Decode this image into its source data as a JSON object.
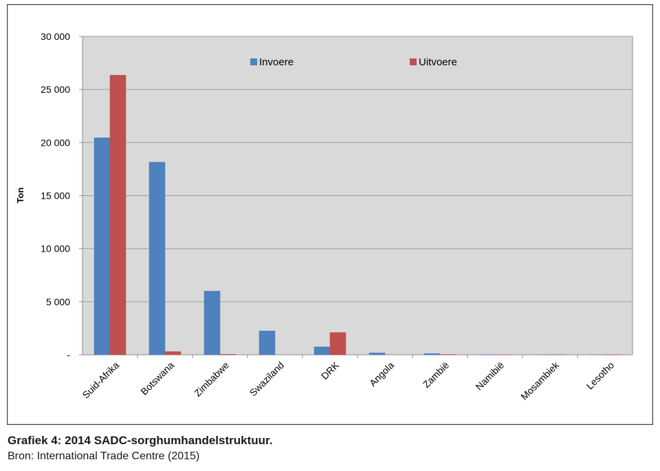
{
  "caption": {
    "title": "Grafiek 4: 2014 SADC-sorghumhandelstruktuur.",
    "source": "Bron: International Trade Centre (2015)"
  },
  "colors": {
    "invoere": "#4f81bd",
    "uitvoere": "#c0504d",
    "plot_background": "#d9d9d9",
    "gridline": "#a6a6a6",
    "frame": "#404040"
  },
  "chart_data": {
    "type": "bar",
    "title": "",
    "xlabel": "",
    "ylabel": "Ton",
    "ylim": [
      0,
      30000
    ],
    "yticks": [
      0,
      5000,
      10000,
      15000,
      20000,
      25000,
      30000
    ],
    "ytick_labels": [
      "-",
      "5 000",
      "10 000",
      "15 000",
      "20 000",
      "25 000",
      "30 000"
    ],
    "grid": true,
    "legend_position": "top",
    "categories": [
      "Suid-Afrika",
      "Botswana",
      "Zimbabwe",
      "Swaziland",
      "DRK",
      "Angola",
      "Zambië",
      "Namibië",
      "Mosambiek",
      "Lesotho"
    ],
    "series": [
      {
        "name": "Invoere",
        "color": "#4f81bd",
        "values": [
          20450,
          18150,
          6000,
          2250,
          750,
          180,
          120,
          20,
          10,
          10
        ]
      },
      {
        "name": "Uitvoere",
        "color": "#c0504d",
        "values": [
          26350,
          300,
          50,
          0,
          2100,
          0,
          30,
          10,
          20,
          20
        ]
      }
    ]
  }
}
